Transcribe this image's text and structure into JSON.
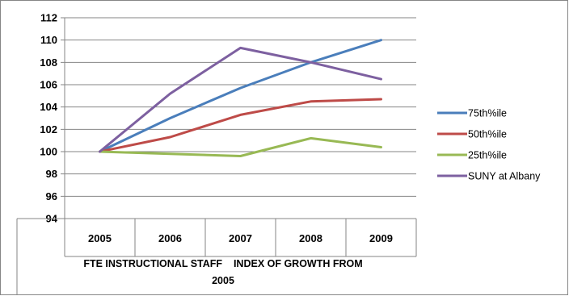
{
  "chart_data": {
    "type": "line",
    "categories": [
      "2005",
      "2006",
      "2007",
      "2008",
      "2009"
    ],
    "series": [
      {
        "name": "75th%ile",
        "color": "#4a7ebb",
        "values": [
          100,
          103.0,
          105.7,
          108.0,
          110.0
        ]
      },
      {
        "name": "50th%ile",
        "color": "#be4b48",
        "values": [
          100,
          101.3,
          103.3,
          104.5,
          104.7
        ]
      },
      {
        "name": "25th%ile",
        "color": "#98b954",
        "values": [
          100,
          99.8,
          99.6,
          101.2,
          100.4
        ]
      },
      {
        "name": "SUNY at Albany",
        "color": "#7d60a0",
        "values": [
          100,
          105.2,
          109.3,
          108.0,
          106.5
        ]
      }
    ],
    "xlabel_lines": [
      "FTE INSTRUCTIONAL STAFF    INDEX OF GROWTH FROM",
      "2005"
    ],
    "ylim": [
      94,
      112
    ],
    "yticks": [
      "94",
      "96",
      "98",
      "100",
      "102",
      "104",
      "106",
      "108",
      "110",
      "112"
    ],
    "grid": true,
    "legend": "right"
  }
}
